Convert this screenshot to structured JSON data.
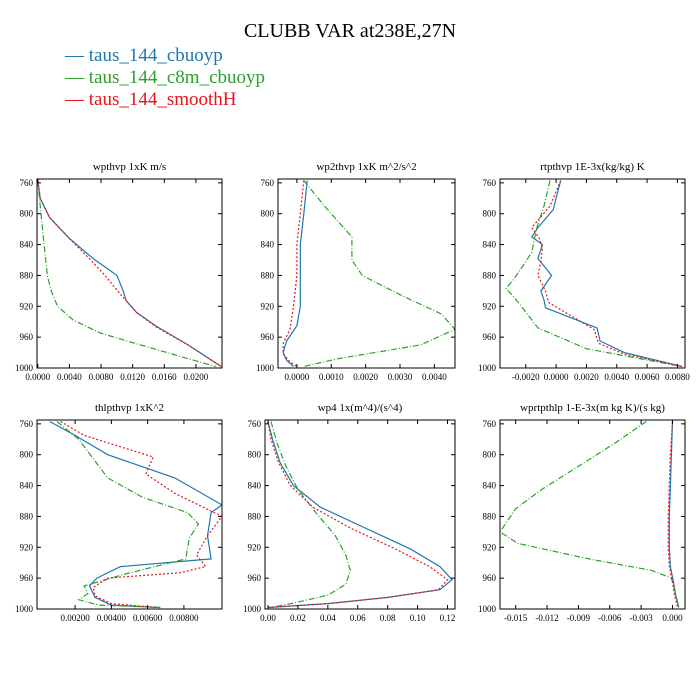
{
  "title": "CLUBB VAR at238E,27N",
  "legend": [
    {
      "label": "— taus_144_cbuoyp",
      "color": "#1f77b4"
    },
    {
      "label": "— taus_144_c8m_cbuoyp",
      "color": "#2ca02c"
    },
    {
      "label": "— taus_144_smoothH",
      "color": "#e8141c"
    }
  ],
  "chart_data": [
    {
      "type": "line",
      "title": "wpthvp  1xK m/s",
      "xlabel": "",
      "ylabel": "",
      "xlim": [
        -0.0001,
        0.0233
      ],
      "ylim": [
        1000,
        755
      ],
      "xticks": [
        0.0,
        0.004,
        0.008,
        0.012,
        0.016,
        0.02
      ],
      "xtick_labels": [
        "0.0000",
        "0.0040",
        "0.0080",
        "0.0120",
        "0.0160",
        "0.0200"
      ],
      "yticks": [
        760,
        800,
        840,
        880,
        920,
        960,
        1000
      ],
      "ytick_labels": [
        "760",
        "800",
        "840",
        "880",
        "920",
        "960",
        "1000"
      ],
      "series": [
        {
          "name": "taus_144_cbuoyp",
          "color": "#1f77b4",
          "style": "solid",
          "x": [
            0.0,
            0.0003,
            0.0015,
            0.004,
            0.007,
            0.01,
            0.0108,
            0.0112,
            0.0125,
            0.015,
            0.019,
            0.0232
          ],
          "y": [
            757,
            780,
            805,
            832,
            858,
            880,
            900,
            913,
            928,
            946,
            970,
            998
          ]
        },
        {
          "name": "taus_144_c8m_cbuoyp",
          "color": "#2ca02c",
          "style": "dashdot",
          "x": [
            0.0,
            0.0004,
            0.0008,
            0.0012,
            0.0017,
            0.0025,
            0.0045,
            0.008,
            0.013,
            0.018,
            0.0225
          ],
          "y": [
            757,
            800,
            840,
            880,
            900,
            920,
            938,
            955,
            970,
            985,
            998
          ]
        },
        {
          "name": "taus_144_smoothH",
          "color": "#e8141c",
          "style": "dotted",
          "x": [
            0.0,
            0.0003,
            0.0015,
            0.004,
            0.0065,
            0.0085,
            0.0105,
            0.0125,
            0.015,
            0.019,
            0.0232
          ],
          "y": [
            757,
            780,
            805,
            832,
            858,
            880,
            905,
            928,
            947,
            970,
            998
          ]
        }
      ]
    },
    {
      "type": "line",
      "title": "wp2thvp  1xK m^2/s^2",
      "xlabel": "",
      "ylabel": "",
      "xlim": [
        -0.00055,
        0.0046
      ],
      "ylim": [
        1000,
        755
      ],
      "xticks": [
        0.0,
        0.001,
        0.002,
        0.003,
        0.004
      ],
      "xtick_labels": [
        "0.0000",
        "0.0010",
        "0.0020",
        "0.0030",
        "0.0040"
      ],
      "yticks": [
        760,
        800,
        840,
        880,
        920,
        960,
        1000
      ],
      "ytick_labels": [
        "760",
        "800",
        "840",
        "880",
        "920",
        "960",
        "1000"
      ],
      "series": [
        {
          "name": "taus_144_cbuoyp",
          "color": "#1f77b4",
          "style": "solid",
          "x": [
            0.0003,
            0.0002,
            0.0001,
            0.0001,
            0.0001,
            0.0,
            -0.0003,
            -0.0004,
            -0.0003,
            -0.0001
          ],
          "y": [
            757,
            800,
            840,
            880,
            920,
            945,
            965,
            980,
            990,
            998
          ]
        },
        {
          "name": "taus_144_c8m_cbuoyp",
          "color": "#2ca02c",
          "style": "dashdot",
          "x": [
            0.0002,
            0.0008,
            0.0016,
            0.0016,
            0.0019,
            0.003,
            0.0042,
            0.0046,
            0.0036,
            0.0012,
            0.0002
          ],
          "y": [
            757,
            790,
            830,
            860,
            880,
            905,
            930,
            950,
            970,
            988,
            998
          ]
        },
        {
          "name": "taus_144_smoothH",
          "color": "#e8141c",
          "style": "dotted",
          "x": [
            0.0002,
            0.0001,
            0.0,
            0.0,
            -0.0001,
            -0.0002,
            -0.0004,
            -0.0004,
            -0.0002,
            0.0
          ],
          "y": [
            757,
            800,
            840,
            880,
            920,
            950,
            968,
            982,
            992,
            998
          ]
        }
      ]
    },
    {
      "type": "line",
      "title": "rtpthvp  1E-3x(kg/kg) K",
      "xlabel": "",
      "ylabel": "",
      "xlim": [
        -0.0037,
        0.0085
      ],
      "ylim": [
        1000,
        755
      ],
      "xticks": [
        -0.002,
        0.0,
        0.002,
        0.004,
        0.006,
        0.008
      ],
      "xtick_labels": [
        "-0.0020",
        "0.0000",
        "0.0020",
        "0.0040",
        "0.0060",
        "0.0080"
      ],
      "yticks": [
        760,
        800,
        840,
        880,
        920,
        960,
        1000
      ],
      "ytick_labels": [
        "760",
        "800",
        "840",
        "880",
        "920",
        "960",
        "1000"
      ],
      "series": [
        {
          "name": "taus_144_cbuoyp",
          "color": "#1f77b4",
          "style": "solid",
          "x": [
            0.0003,
            -0.0002,
            -0.0012,
            -0.0016,
            -0.0009,
            -0.0012,
            -0.0003,
            -0.001,
            -0.0008,
            -0.0007,
            0.0027,
            0.0029,
            0.0045,
            0.0083
          ],
          "y": [
            757,
            795,
            818,
            830,
            840,
            858,
            880,
            900,
            912,
            922,
            948,
            965,
            980,
            998
          ]
        },
        {
          "name": "taus_144_c8m_cbuoyp",
          "color": "#2ca02c",
          "style": "dashdot",
          "x": [
            -0.0004,
            -0.0008,
            -0.0013,
            -0.0016,
            -0.0022,
            -0.0028,
            -0.0033,
            -0.0027,
            -0.0017,
            -0.0012,
            0.002,
            0.0083
          ],
          "y": [
            757,
            790,
            820,
            850,
            868,
            885,
            897,
            910,
            935,
            948,
            975,
            998
          ]
        },
        {
          "name": "taus_144_smoothH",
          "color": "#e8141c",
          "style": "dotted",
          "x": [
            0.0003,
            -0.0004,
            -0.0016,
            -0.0011,
            -0.0009,
            -0.001,
            -0.0012,
            -0.0007,
            -0.0005,
            0.0025,
            0.0028,
            0.0045,
            0.0083
          ],
          "y": [
            757,
            790,
            818,
            832,
            845,
            862,
            880,
            900,
            915,
            950,
            968,
            982,
            998
          ]
        }
      ]
    },
    {
      "type": "line",
      "title": "thlpthvp  1xK^2",
      "xlabel": "",
      "ylabel": "",
      "xlim": [
        -0.0001,
        0.0101
      ],
      "ylim": [
        1000,
        755
      ],
      "xticks": [
        0.002,
        0.004,
        0.006,
        0.008
      ],
      "xtick_labels": [
        "0.00200",
        "0.00400",
        "0.00600",
        "0.00800"
      ],
      "yticks": [
        760,
        800,
        840,
        880,
        920,
        960,
        1000
      ],
      "ytick_labels": [
        "760",
        "800",
        "840",
        "880",
        "920",
        "960",
        "1000"
      ],
      "series": [
        {
          "name": "taus_144_cbuoyp",
          "color": "#1f77b4",
          "style": "solid",
          "x": [
            0.0006,
            0.002,
            0.0038,
            0.0075,
            0.0101,
            0.0095,
            0.0093,
            0.0095,
            0.0045,
            0.0032,
            0.0028,
            0.0031,
            0.004,
            0.0067
          ],
          "y": [
            757,
            775,
            800,
            830,
            865,
            875,
            905,
            935,
            945,
            960,
            970,
            985,
            995,
            998
          ]
        },
        {
          "name": "taus_144_c8m_cbuoyp",
          "color": "#2ca02c",
          "style": "dashdot",
          "x": [
            0.001,
            0.0022,
            0.003,
            0.0038,
            0.0057,
            0.0082,
            0.0088,
            0.0083,
            0.0081,
            0.0047,
            0.0025,
            0.0027,
            0.0022,
            0.0033,
            0.0067
          ],
          "y": [
            757,
            780,
            805,
            830,
            855,
            875,
            890,
            908,
            935,
            955,
            970,
            980,
            988,
            995,
            998
          ]
        },
        {
          "name": "taus_144_smoothH",
          "color": "#e8141c",
          "style": "dotted",
          "x": [
            0.0012,
            0.0025,
            0.0063,
            0.0059,
            0.0075,
            0.0101,
            0.0093,
            0.0087,
            0.0092,
            0.0078,
            0.0038,
            0.003,
            0.0031,
            0.004,
            0.0065
          ],
          "y": [
            757,
            775,
            803,
            825,
            850,
            880,
            905,
            930,
            945,
            953,
            960,
            972,
            983,
            993,
            998
          ]
        }
      ]
    },
    {
      "type": "line",
      "title": "wp4  1x(m^4)/(s^4)",
      "xlabel": "",
      "ylabel": "",
      "xlim": [
        -0.002,
        0.125
      ],
      "ylim": [
        1000,
        755
      ],
      "xticks": [
        0.0,
        0.02,
        0.04,
        0.06,
        0.08,
        0.1,
        0.12
      ],
      "xtick_labels": [
        "0.00",
        "0.02",
        "0.04",
        "0.06",
        "0.08",
        "0.10",
        "0.12"
      ],
      "yticks": [
        760,
        800,
        840,
        880,
        920,
        960,
        1000
      ],
      "ytick_labels": [
        "760",
        "800",
        "840",
        "880",
        "920",
        "960",
        "1000"
      ],
      "series": [
        {
          "name": "taus_144_cbuoyp",
          "color": "#1f77b4",
          "style": "solid",
          "x": [
            0.0,
            0.003,
            0.008,
            0.017,
            0.035,
            0.065,
            0.095,
            0.115,
            0.123,
            0.115,
            0.08,
            0.04,
            0.0
          ],
          "y": [
            757,
            780,
            810,
            840,
            868,
            895,
            922,
            945,
            962,
            975,
            985,
            993,
            998
          ]
        },
        {
          "name": "taus_144_c8m_cbuoyp",
          "color": "#2ca02c",
          "style": "dashdot",
          "x": [
            0.002,
            0.006,
            0.012,
            0.02,
            0.032,
            0.045,
            0.052,
            0.055,
            0.052,
            0.04,
            0.018,
            0.002
          ],
          "y": [
            757,
            785,
            815,
            845,
            875,
            905,
            930,
            950,
            968,
            982,
            992,
            998
          ]
        },
        {
          "name": "taus_144_smoothH",
          "color": "#e8141c",
          "style": "dotted",
          "x": [
            0.0,
            0.002,
            0.007,
            0.015,
            0.03,
            0.055,
            0.085,
            0.108,
            0.12,
            0.114,
            0.08,
            0.04,
            0.0
          ],
          "y": [
            757,
            780,
            810,
            840,
            868,
            895,
            922,
            945,
            962,
            975,
            985,
            993,
            998
          ]
        }
      ]
    },
    {
      "type": "line",
      "title": "wprtpthlp  1-E-3x(m kg K)/(s kg)",
      "xlabel": "",
      "ylabel": "",
      "xlim": [
        -0.0165,
        0.0012
      ],
      "ylim": [
        1000,
        755
      ],
      "xticks": [
        -0.015,
        -0.012,
        -0.009,
        -0.006,
        -0.003,
        0.0
      ],
      "xtick_labels": [
        "-0.015",
        "-0.012",
        "-0.009",
        "-0.006",
        "-0.003",
        "0.000"
      ],
      "yticks": [
        760,
        800,
        840,
        880,
        920,
        960,
        1000
      ],
      "ytick_labels": [
        "760",
        "800",
        "840",
        "880",
        "920",
        "960",
        "1000"
      ],
      "series": [
        {
          "name": "taus_144_cbuoyp",
          "color": "#1f77b4",
          "style": "solid",
          "x": [
            0.0,
            -0.0001,
            -0.0002,
            -0.0003,
            -0.0003,
            -0.0002,
            0.0001,
            0.0003,
            0.0006
          ],
          "y": [
            757,
            800,
            840,
            880,
            920,
            945,
            965,
            982,
            998
          ]
        },
        {
          "name": "taus_144_c8m_cbuoyp",
          "color": "#2ca02c",
          "style": "dashdot",
          "x": [
            -0.0025,
            -0.0055,
            -0.009,
            -0.0125,
            -0.015,
            -0.0165,
            -0.0148,
            -0.008,
            -0.002,
            -0.0001,
            0.0003,
            0.0006
          ],
          "y": [
            757,
            785,
            815,
            845,
            870,
            900,
            915,
            935,
            950,
            960,
            980,
            998
          ]
        },
        {
          "name": "taus_144_smoothH",
          "color": "#e8141c",
          "style": "dotted",
          "x": [
            0.0,
            -0.0002,
            -0.0003,
            -0.0004,
            -0.0004,
            -0.0003,
            0.0,
            0.0002,
            0.0005
          ],
          "y": [
            757,
            800,
            840,
            880,
            920,
            945,
            965,
            982,
            998
          ]
        }
      ]
    }
  ]
}
